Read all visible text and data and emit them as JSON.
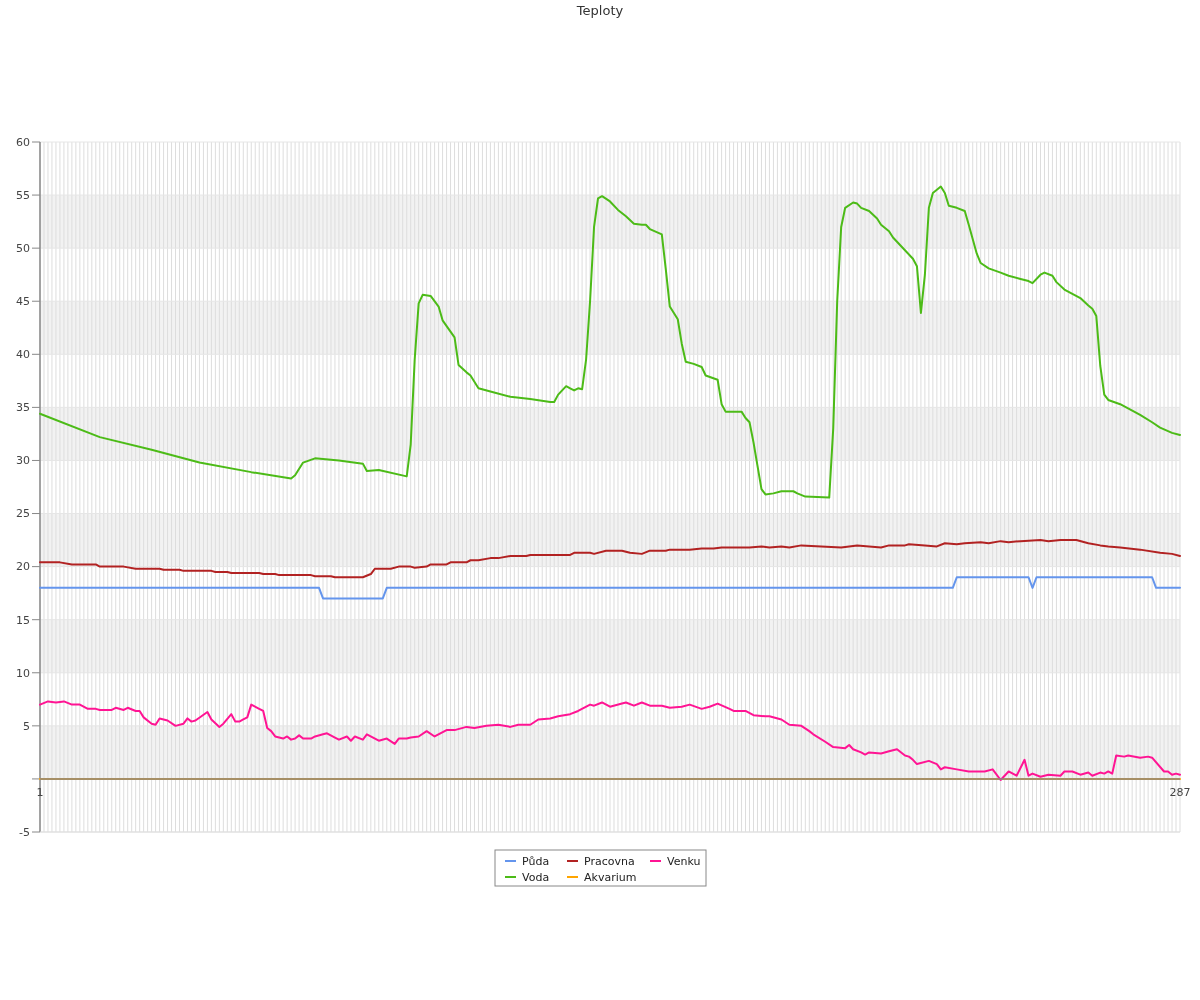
{
  "chart_data": {
    "type": "line",
    "title": "Teploty",
    "xlim": [
      1,
      287
    ],
    "xticks": [
      1,
      {
        "value": 2,
        "label": null
      },
      {
        "value": 3,
        "label": null
      },
      {
        "value": 4,
        "label": null
      },
      {
        "value": 5,
        "label": null
      },
      {
        "value": 6,
        "label": null
      },
      {
        "value": 7,
        "label": null
      },
      {
        "value": 8,
        "label": null
      },
      {
        "value": 9,
        "label": null
      },
      {
        "value": 10,
        "label": null
      },
      {
        "value": 11,
        "label": null
      },
      {
        "value": 12,
        "label": null
      },
      {
        "value": 13,
        "label": null
      },
      {
        "value": 14,
        "label": null
      },
      {
        "value": 15,
        "label": null
      },
      {
        "value": 16,
        "label": null
      },
      {
        "value": 17,
        "label": null
      },
      {
        "value": 18,
        "label": null
      },
      {
        "value": 19,
        "label": null
      },
      {
        "value": 20,
        "label": null
      },
      {
        "value": 21,
        "label": null
      },
      {
        "value": 22,
        "label": null
      },
      {
        "value": 23,
        "label": null
      },
      {
        "value": 24,
        "label": null
      },
      {
        "value": 25,
        "label": null
      },
      {
        "value": 26,
        "label": null
      },
      {
        "value": 27,
        "label": null
      },
      {
        "value": 28,
        "label": null
      },
      {
        "value": 29,
        "label": null
      },
      {
        "value": 30,
        "label": null
      },
      {
        "value": 31,
        "label": null
      },
      {
        "value": 32,
        "label": null
      },
      {
        "value": 33,
        "label": null
      },
      {
        "value": 34,
        "label": null
      },
      {
        "value": 35,
        "label": null
      },
      {
        "value": 36,
        "label": null
      },
      {
        "value": 37,
        "label": null
      },
      {
        "value": 38,
        "label": null
      },
      {
        "value": 39,
        "label": null
      },
      {
        "value": 40,
        "label": null
      },
      {
        "value": 41,
        "label": null
      },
      {
        "value": 42,
        "label": null
      },
      {
        "value": 43,
        "label": null
      },
      {
        "value": 44,
        "label": null
      },
      {
        "value": 45,
        "label": null
      },
      {
        "value": 46,
        "label": null
      },
      {
        "value": 47,
        "label": null
      },
      {
        "value": 48,
        "label": null
      },
      {
        "value": 49,
        "label": null
      },
      {
        "value": 50,
        "label": null
      },
      {
        "value": 51,
        "label": null
      },
      {
        "value": 52,
        "label": null
      },
      {
        "value": 53,
        "label": null
      },
      {
        "value": 54,
        "label": null
      },
      {
        "value": 55,
        "label": null
      },
      {
        "value": 56,
        "label": null
      },
      {
        "value": 57,
        "label": null
      },
      {
        "value": 58,
        "label": null
      },
      {
        "value": 59,
        "label": null
      },
      {
        "value": 60,
        "label": null
      },
      {
        "value": 61,
        "label": null
      },
      {
        "value": 62,
        "label": null
      },
      {
        "value": 63,
        "label": null
      },
      {
        "value": 64,
        "label": null
      },
      {
        "value": 65,
        "label": null
      },
      {
        "value": 66,
        "label": null
      },
      {
        "value": 67,
        "label": null
      },
      {
        "value": 68,
        "label": null
      },
      {
        "value": 69,
        "label": null
      },
      {
        "value": 70,
        "label": null
      },
      {
        "value": 71,
        "label": null
      },
      {
        "value": 72,
        "label": null
      },
      {
        "value": 73,
        "label": null
      },
      {
        "value": 74,
        "label": null
      },
      {
        "value": 75,
        "label": null
      },
      {
        "value": 76,
        "label": null
      },
      {
        "value": 77,
        "label": null
      },
      {
        "value": 78,
        "label": null
      },
      {
        "value": 79,
        "label": null
      },
      {
        "value": 80,
        "label": null
      },
      {
        "value": 81,
        "label": null
      },
      {
        "value": 82,
        "label": null
      },
      {
        "value": 83,
        "label": null
      },
      {
        "value": 84,
        "label": null
      },
      {
        "value": 85,
        "label": null
      },
      {
        "value": 86,
        "label": null
      },
      {
        "value": 87,
        "label": null
      },
      {
        "value": 88,
        "label": null
      },
      {
        "value": 89,
        "label": null
      },
      {
        "value": 90,
        "label": null
      },
      {
        "value": 91,
        "label": null
      },
      {
        "value": 92,
        "label": null
      },
      {
        "value": 93,
        "label": null
      },
      {
        "value": 94,
        "label": null
      },
      {
        "value": 95,
        "label": null
      },
      {
        "value": 96,
        "label": null
      },
      {
        "value": 97,
        "label": null
      },
      {
        "value": 98,
        "label": null
      },
      {
        "value": 99,
        "label": null
      },
      {
        "value": 100,
        "label": null
      },
      {
        "value": 101,
        "label": null
      },
      {
        "value": 102,
        "label": null
      },
      {
        "value": 103,
        "label": null
      },
      {
        "value": 104,
        "label": null
      },
      {
        "value": 105,
        "label": null
      },
      {
        "value": 106,
        "label": null
      },
      {
        "value": 107,
        "label": null
      },
      {
        "value": 108,
        "label": null
      },
      {
        "value": 109,
        "label": null
      },
      {
        "value": 110,
        "label": null
      },
      {
        "value": 111,
        "label": null
      },
      {
        "value": 112,
        "label": null
      },
      {
        "value": 113,
        "label": null
      },
      {
        "value": 114,
        "label": null
      },
      {
        "value": 115,
        "label": null
      },
      {
        "value": 116,
        "label": null
      },
      {
        "value": 117,
        "label": null
      },
      {
        "value": 118,
        "label": null
      },
      {
        "value": 119,
        "label": null
      },
      {
        "value": 120,
        "label": null
      },
      {
        "value": 121,
        "label": null
      },
      {
        "value": 122,
        "label": null
      },
      {
        "value": 123,
        "label": null
      },
      {
        "value": 124,
        "label": null
      },
      {
        "value": 125,
        "label": null
      },
      {
        "value": 126,
        "label": null
      },
      {
        "value": 127,
        "label": null
      },
      {
        "value": 128,
        "label": null
      },
      {
        "value": 129,
        "label": null
      },
      {
        "value": 130,
        "label": null
      },
      {
        "value": 131,
        "label": null
      },
      {
        "value": 132,
        "label": null
      },
      {
        "value": 133,
        "label": null
      },
      {
        "value": 134,
        "label": null
      },
      {
        "value": 135,
        "label": null
      },
      {
        "value": 136,
        "label": null
      },
      {
        "value": 137,
        "label": null
      },
      {
        "value": 138,
        "label": null
      },
      {
        "value": 139,
        "label": null
      },
      {
        "value": 140,
        "label": null
      },
      {
        "value": 141,
        "label": null
      },
      {
        "value": 142,
        "label": null
      },
      {
        "value": 143,
        "label": null
      },
      {
        "value": 144,
        "label": null
      },
      {
        "value": 145,
        "label": null
      },
      {
        "value": 146,
        "label": null
      },
      {
        "value": 147,
        "label": null
      },
      {
        "value": 148,
        "label": null
      },
      {
        "value": 149,
        "label": null
      },
      {
        "value": 150,
        "label": null
      },
      {
        "value": 151,
        "label": null
      },
      {
        "value": 152,
        "label": null
      },
      {
        "value": 153,
        "label": null
      },
      {
        "value": 154,
        "label": null
      },
      {
        "value": 155,
        "label": null
      },
      {
        "value": 156,
        "label": null
      },
      {
        "value": 157,
        "label": null
      },
      {
        "value": 158,
        "label": null
      },
      {
        "value": 159,
        "label": null
      },
      {
        "value": 160,
        "label": null
      },
      {
        "value": 161,
        "label": null
      },
      {
        "value": 162,
        "label": null
      },
      {
        "value": 163,
        "label": null
      },
      {
        "value": 164,
        "label": null
      },
      {
        "value": 165,
        "label": null
      },
      {
        "value": 166,
        "label": null
      },
      {
        "value": 167,
        "label": null
      },
      {
        "value": 168,
        "label": null
      },
      {
        "value": 169,
        "label": null
      },
      {
        "value": 170,
        "label": null
      },
      {
        "value": 171,
        "label": null
      },
      {
        "value": 172,
        "label": null
      },
      {
        "value": 173,
        "label": null
      },
      {
        "value": 174,
        "label": null
      },
      {
        "value": 175,
        "label": null
      },
      {
        "value": 176,
        "label": null
      },
      {
        "value": 177,
        "label": null
      },
      {
        "value": 178,
        "label": null
      },
      {
        "value": 179,
        "label": null
      },
      {
        "value": 180,
        "label": null
      },
      {
        "value": 181,
        "label": null
      },
      {
        "value": 182,
        "label": null
      },
      {
        "value": 183,
        "label": null
      },
      {
        "value": 184,
        "label": null
      },
      {
        "value": 185,
        "label": null
      },
      {
        "value": 186,
        "label": null
      },
      {
        "value": 187,
        "label": null
      },
      {
        "value": 188,
        "label": null
      },
      {
        "value": 189,
        "label": null
      },
      {
        "value": 190,
        "label": null
      },
      {
        "value": 191,
        "label": null
      },
      {
        "value": 192,
        "label": null
      },
      {
        "value": 193,
        "label": null
      },
      {
        "value": 194,
        "label": null
      },
      {
        "value": 195,
        "label": null
      },
      {
        "value": 196,
        "label": null
      },
      {
        "value": 197,
        "label": null
      },
      {
        "value": 198,
        "label": null
      },
      {
        "value": 199,
        "label": null
      },
      {
        "value": 200,
        "label": null
      },
      {
        "value": 201,
        "label": null
      },
      {
        "value": 202,
        "label": null
      },
      {
        "value": 203,
        "label": null
      },
      {
        "value": 204,
        "label": null
      },
      {
        "value": 205,
        "label": null
      },
      {
        "value": 206,
        "label": null
      },
      {
        "value": 207,
        "label": null
      },
      {
        "value": 208,
        "label": null
      },
      {
        "value": 209,
        "label": null
      },
      {
        "value": 210,
        "label": null
      },
      {
        "value": 211,
        "label": null
      },
      {
        "value": 212,
        "label": null
      },
      {
        "value": 213,
        "label": null
      },
      {
        "value": 214,
        "label": null
      },
      {
        "value": 215,
        "label": null
      },
      {
        "value": 216,
        "label": null
      },
      {
        "value": 217,
        "label": null
      },
      {
        "value": 218,
        "label": null
      },
      {
        "value": 219,
        "label": null
      },
      {
        "value": 220,
        "label": null
      },
      {
        "value": 221,
        "label": null
      },
      {
        "value": 222,
        "label": null
      },
      {
        "value": 223,
        "label": null
      },
      {
        "value": 224,
        "label": null
      },
      {
        "value": 225,
        "label": null
      },
      {
        "value": 226,
        "label": null
      },
      {
        "value": 227,
        "label": null
      },
      {
        "value": 228,
        "label": null
      },
      {
        "value": 229,
        "label": null
      },
      {
        "value": 230,
        "label": null
      },
      {
        "value": 231,
        "label": null
      },
      {
        "value": 232,
        "label": null
      },
      {
        "value": 233,
        "label": null
      },
      {
        "value": 234,
        "label": null
      },
      {
        "value": 235,
        "label": null
      },
      {
        "value": 236,
        "label": null
      },
      {
        "value": 237,
        "label": null
      },
      {
        "value": 238,
        "label": null
      },
      {
        "value": 239,
        "label": null
      },
      {
        "value": 240,
        "label": null
      },
      {
        "value": 241,
        "label": null
      },
      {
        "value": 242,
        "label": null
      },
      {
        "value": 243,
        "label": null
      },
      {
        "value": 244,
        "label": null
      },
      {
        "value": 245,
        "label": null
      },
      {
        "value": 246,
        "label": null
      },
      {
        "value": 247,
        "label": null
      },
      {
        "value": 248,
        "label": null
      },
      {
        "value": 249,
        "label": null
      },
      {
        "value": 250,
        "label": null
      },
      {
        "value": 251,
        "label": null
      },
      {
        "value": 252,
        "label": null
      },
      {
        "value": 253,
        "label": null
      },
      {
        "value": 254,
        "label": null
      },
      {
        "value": 255,
        "label": null
      },
      {
        "value": 256,
        "label": null
      },
      {
        "value": 257,
        "label": null
      },
      {
        "value": 258,
        "label": null
      },
      {
        "value": 259,
        "label": null
      },
      {
        "value": 260,
        "label": null
      },
      {
        "value": 261,
        "label": null
      },
      {
        "value": 262,
        "label": null
      },
      {
        "value": 263,
        "label": null
      },
      {
        "value": 264,
        "label": null
      },
      {
        "value": 265,
        "label": null
      },
      {
        "value": 266,
        "label": null
      },
      {
        "value": 267,
        "label": null
      },
      {
        "value": 268,
        "label": null
      },
      {
        "value": 269,
        "label": null
      },
      {
        "value": 270,
        "label": null
      },
      {
        "value": 271,
        "label": null
      },
      {
        "value": 272,
        "label": null
      },
      {
        "value": 273,
        "label": null
      },
      {
        "value": 274,
        "label": null
      },
      {
        "value": 275,
        "label": null
      },
      {
        "value": 276,
        "label": null
      },
      {
        "value": 277,
        "label": null
      },
      {
        "value": 278,
        "label": null
      },
      {
        "value": 279,
        "label": null
      },
      {
        "value": 280,
        "label": null
      },
      {
        "value": 281,
        "label": null
      },
      {
        "value": 282,
        "label": null
      },
      {
        "value": 283,
        "label": null
      },
      {
        "value": 284,
        "label": null
      },
      {
        "value": 285,
        "label": null
      },
      {
        "value": 286,
        "label": null
      },
      287
    ],
    "ylim": [
      -5,
      60
    ],
    "yticks": [
      -5,
      {
        "value": 0,
        "label": null
      },
      5,
      10,
      15,
      20,
      25,
      30,
      35,
      40,
      45,
      50,
      55,
      60
    ],
    "grid": true,
    "legend": "bottom",
    "bands": [
      {
        "axis": "y",
        "from": 0,
        "to": 5,
        "color": "#f2f2f2"
      },
      {
        "axis": "y",
        "from": 10,
        "to": 15,
        "color": "#f2f2f2"
      },
      {
        "axis": "y",
        "from": 20,
        "to": 25,
        "color": "#f2f2f2"
      },
      {
        "axis": "y",
        "from": 30,
        "to": 35,
        "color": "#f2f2f2"
      },
      {
        "axis": "y",
        "from": 40,
        "to": 45,
        "color": "#f2f2f2"
      },
      {
        "axis": "y",
        "from": 50,
        "to": 55,
        "color": "#f2f2f2"
      }
    ],
    "series": [
      {
        "name": "Půda",
        "color": "#6495ed",
        "x": [
          1,
          71,
          72,
          87,
          88,
          230,
          231,
          249,
          250,
          251,
          280,
          281,
          287
        ],
        "values": [
          18,
          18,
          17,
          17,
          18,
          18,
          19,
          19,
          18,
          19,
          19,
          18,
          18
        ]
      },
      {
        "name": "Voda",
        "color": "#4cbb17",
        "x": [
          1,
          16,
          29,
          41,
          54,
          64,
          65,
          67,
          70,
          76,
          82,
          83,
          86,
          93,
          94,
          95,
          96,
          97,
          99,
          101,
          102,
          105,
          106,
          108,
          109,
          111,
          114,
          119,
          124,
          129,
          130,
          131,
          133,
          134,
          135,
          136,
          137,
          138,
          139,
          140,
          141,
          142,
          144,
          146,
          148,
          150,
          152,
          153,
          154,
          157,
          158,
          159,
          161,
          162,
          163,
          165,
          167,
          168,
          171,
          172,
          173,
          177,
          178,
          179,
          180,
          182,
          183,
          185,
          187,
          190,
          191,
          193,
          199,
          200,
          201,
          202,
          203,
          205,
          206,
          207,
          209,
          211,
          212,
          214,
          215,
          216,
          218,
          220,
          221,
          222,
          223,
          224,
          225,
          227,
          228,
          229,
          231,
          233,
          234,
          236,
          237,
          239,
          242,
          244,
          247,
          249,
          250,
          252,
          253,
          255,
          256,
          258,
          262,
          264,
          265,
          266,
          267,
          268,
          269,
          272,
          277,
          280,
          282,
          285,
          287
        ],
        "values": [
          34.4,
          32.2,
          31.0,
          29.8,
          28.9,
          28.3,
          28.6,
          29.8,
          30.2,
          30.0,
          29.7,
          29.0,
          29.1,
          28.5,
          31.5,
          39.5,
          44.8,
          45.6,
          45.5,
          44.5,
          43.2,
          41.6,
          39,
          38.3,
          38,
          36.8,
          36.5,
          36,
          35.8,
          35.5,
          35.5,
          36.2,
          37,
          36.8,
          36.6,
          36.8,
          36.7,
          39.5,
          45,
          52,
          54.7,
          54.9,
          54.4,
          53.6,
          53,
          52.3,
          52.2,
          52.2,
          51.8,
          51.3,
          48,
          44.5,
          43.3,
          41,
          39.3,
          39.1,
          38.8,
          38,
          37.6,
          35.3,
          34.6,
          34.6,
          34,
          33.6,
          31.7,
          27.3,
          26.8,
          26.9,
          27.1,
          27.1,
          26.9,
          26.6,
          26.5,
          33,
          45,
          52,
          53.8,
          54.3,
          54.2,
          53.8,
          53.5,
          52.8,
          52.2,
          51.6,
          51,
          50.6,
          49.8,
          49,
          48.3,
          43.9,
          47.5,
          53.8,
          55.2,
          55.8,
          55.2,
          54,
          53.8,
          53.5,
          52.2,
          49.5,
          48.6,
          48.1,
          47.7,
          47.4,
          47.1,
          46.9,
          46.7,
          47.5,
          47.7,
          47.4,
          46.8,
          46.1,
          45.3,
          44.6,
          44.3,
          43.6,
          38.9,
          36.2,
          35.7,
          35.3,
          34.3,
          33.6,
          33.1,
          32.6,
          32.4
        ]
      },
      {
        "name": "Pracovna",
        "color": "#b22222",
        "x": [
          1,
          6,
          9,
          15,
          16,
          22,
          25,
          31,
          32,
          36,
          37,
          44,
          45,
          48,
          49,
          56,
          57,
          60,
          61,
          69,
          70,
          74,
          75,
          82,
          84,
          85,
          89,
          91,
          94,
          95,
          98,
          99,
          103,
          104,
          108,
          109,
          111,
          114,
          116,
          119,
          123,
          124,
          134,
          135,
          139,
          140,
          143,
          147,
          149,
          152,
          154,
          158,
          159,
          164,
          167,
          170,
          172,
          179,
          182,
          184,
          187,
          189,
          192,
          197,
          202,
          206,
          209,
          212,
          214,
          218,
          219,
          223,
          226,
          228,
          231,
          233,
          237,
          239,
          242,
          244,
          247,
          252,
          254,
          257,
          261,
          264,
          267,
          269,
          272,
          277,
          282,
          285,
          287
        ],
        "values": [
          20.4,
          20.4,
          20.2,
          20.2,
          20.0,
          20.0,
          19.8,
          19.8,
          19.7,
          19.7,
          19.6,
          19.6,
          19.5,
          19.5,
          19.4,
          19.4,
          19.3,
          19.3,
          19.2,
          19.2,
          19.1,
          19.1,
          19.0,
          19.0,
          19.3,
          19.8,
          19.8,
          20.0,
          20.0,
          19.9,
          20.0,
          20.2,
          20.2,
          20.4,
          20.4,
          20.6,
          20.6,
          20.8,
          20.8,
          21.0,
          21.0,
          21.1,
          21.1,
          21.3,
          21.3,
          21.2,
          21.5,
          21.5,
          21.3,
          21.2,
          21.5,
          21.5,
          21.6,
          21.6,
          21.7,
          21.7,
          21.8,
          21.8,
          21.9,
          21.8,
          21.9,
          21.8,
          22.0,
          21.9,
          21.8,
          22.0,
          21.9,
          21.8,
          22.0,
          22.0,
          22.1,
          22.0,
          21.9,
          22.2,
          22.1,
          22.2,
          22.3,
          22.2,
          22.4,
          22.3,
          22.4,
          22.5,
          22.4,
          22.5,
          22.5,
          22.2,
          22.0,
          21.9,
          21.8,
          21.6,
          21.3,
          21.2,
          21.0
        ]
      },
      {
        "name": "Akvarium",
        "color": "#ffa500",
        "x": [
          1,
          287
        ],
        "values": [
          0,
          0
        ]
      },
      {
        "name": "Venku",
        "color": "#ff1493",
        "x": [
          1,
          3,
          5,
          7,
          9,
          11,
          13,
          15,
          16,
          19,
          20,
          22,
          23,
          25,
          26,
          27,
          29,
          30,
          31,
          33,
          35,
          37,
          38,
          39,
          40,
          43,
          44,
          46,
          47,
          49,
          50,
          51,
          52,
          53,
          54,
          56,
          57,
          58,
          59,
          60,
          62,
          63,
          64,
          65,
          66,
          67,
          69,
          70,
          72,
          73,
          75,
          76,
          78,
          79,
          80,
          82,
          83,
          86,
          88,
          90,
          91,
          93,
          94,
          96,
          98,
          100,
          103,
          105,
          108,
          110,
          113,
          116,
          119,
          121,
          124,
          126,
          129,
          131,
          134,
          136,
          139,
          140,
          142,
          144,
          147,
          148,
          150,
          152,
          154,
          157,
          159,
          162,
          164,
          167,
          169,
          171,
          174,
          175,
          178,
          180,
          183,
          184,
          187,
          189,
          192,
          194,
          195,
          198,
          200,
          203,
          204,
          205,
          207,
          208,
          209,
          212,
          214,
          216,
          218,
          219,
          220,
          221,
          224,
          226,
          227,
          228,
          231,
          234,
          238,
          240,
          242,
          244,
          246,
          248,
          249,
          250,
          252,
          254,
          257,
          258,
          260,
          262,
          264,
          265,
          267,
          268,
          269,
          270,
          271,
          273,
          274,
          277,
          279,
          280,
          283,
          284,
          285,
          286,
          287
        ],
        "values": [
          7.0,
          7.3,
          7.2,
          7.3,
          7.0,
          7.0,
          6.6,
          6.6,
          6.5,
          6.5,
          6.7,
          6.5,
          6.7,
          6.4,
          6.4,
          5.8,
          5.2,
          5.1,
          5.7,
          5.5,
          5.0,
          5.2,
          5.7,
          5.4,
          5.5,
          6.3,
          5.6,
          4.9,
          5.2,
          6.1,
          5.4,
          5.4,
          5.6,
          5.8,
          7.0,
          6.6,
          6.4,
          4.8,
          4.5,
          4.0,
          3.8,
          4.0,
          3.7,
          3.8,
          4.1,
          3.8,
          3.8,
          4.0,
          4.2,
          4.3,
          3.9,
          3.7,
          4.0,
          3.6,
          4.0,
          3.7,
          4.2,
          3.6,
          3.8,
          3.3,
          3.8,
          3.8,
          3.9,
          4.0,
          4.5,
          4.0,
          4.6,
          4.6,
          4.9,
          4.8,
          5.0,
          5.1,
          4.9,
          5.1,
          5.1,
          5.6,
          5.7,
          5.9,
          6.1,
          6.4,
          7.0,
          6.9,
          7.2,
          6.8,
          7.1,
          7.2,
          6.9,
          7.2,
          6.9,
          6.9,
          6.7,
          6.8,
          7.0,
          6.6,
          6.8,
          7.1,
          6.6,
          6.4,
          6.4,
          6.0,
          5.9,
          5.9,
          5.6,
          5.1,
          5.0,
          4.5,
          4.2,
          3.5,
          3.0,
          2.9,
          3.2,
          2.8,
          2.5,
          2.3,
          2.5,
          2.4,
          2.6,
          2.8,
          2.2,
          2.1,
          1.8,
          1.4,
          1.7,
          1.4,
          0.9,
          1.1,
          0.9,
          0.7,
          0.7,
          0.9,
          -0.1,
          0.7,
          0.3,
          1.8,
          0.3,
          0.5,
          0.2,
          0.4,
          0.3,
          0.7,
          0.7,
          0.4,
          0.6,
          0.3,
          0.6,
          0.5,
          0.7,
          0.5,
          2.2,
          2.1,
          2.2,
          2.0,
          2.1,
          2.0,
          0.7,
          0.7,
          0.4,
          0.5,
          0.4
        ]
      }
    ]
  }
}
